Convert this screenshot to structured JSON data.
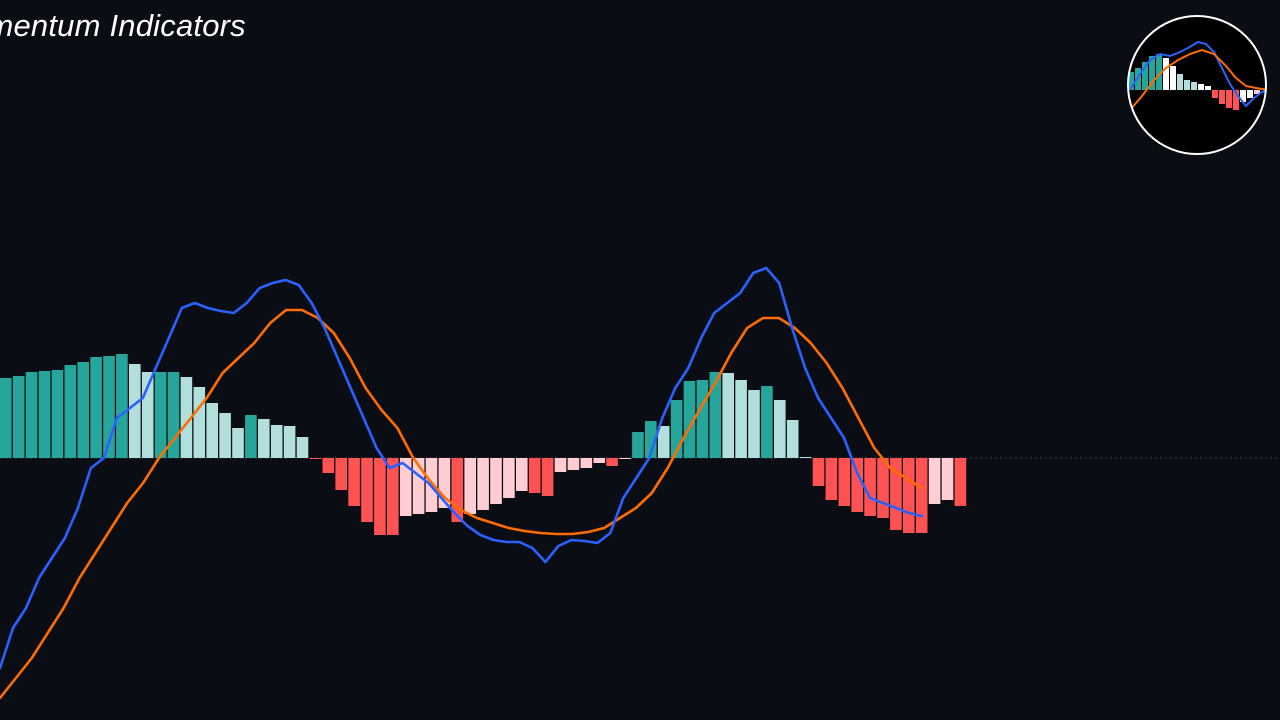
{
  "title": "Momentum Indicators",
  "colors": {
    "background": "#0a0d14",
    "hist_pos_strong": "#26a69a",
    "hist_pos_weak": "#b2dfdb",
    "hist_neg_strong": "#ff5252",
    "hist_neg_weak": "#ffcdd2",
    "macd_line": "#2962ff",
    "signal_line": "#ff6d00",
    "zero_line": "#3a3f4a",
    "logo_ring": "#ffffff"
  },
  "logo": {
    "name": "indicator-badge",
    "depicts": "miniature MACD histogram with two lines"
  },
  "chart_data": {
    "type": "bar",
    "grid": false,
    "legend": "none",
    "ylim": [
      -3.0,
      2.0
    ],
    "histogram": [
      0.8,
      0.82,
      0.86,
      0.87,
      0.88,
      0.93,
      0.96,
      1.01,
      1.02,
      1.04,
      0.94,
      0.86,
      0.86,
      0.86,
      0.81,
      0.71,
      0.55,
      0.45,
      0.3,
      0.43,
      0.39,
      0.33,
      0.32,
      0.21,
      -0.01,
      -0.15,
      -0.32,
      -0.48,
      -0.64,
      -0.77,
      -0.77,
      -0.58,
      -0.56,
      -0.54,
      -0.5,
      -0.64,
      -0.56,
      -0.52,
      -0.46,
      -0.4,
      -0.33,
      -0.35,
      -0.38,
      -0.14,
      -0.12,
      -0.1,
      -0.05,
      -0.08,
      -0.01,
      0.26,
      0.37,
      0.32,
      0.58,
      0.77,
      0.78,
      0.86,
      0.85,
      0.78,
      0.68,
      0.72,
      0.58,
      0.38,
      0.01,
      -0.28,
      -0.42,
      -0.48,
      -0.54,
      -0.58,
      -0.6,
      -0.72,
      -0.75,
      -0.75,
      -0.46,
      -0.42,
      -0.48
    ],
    "series": [
      {
        "values": [
          -2.1,
          -1.7,
          -1.5,
          -1.2,
          -1.0,
          -0.8,
          -0.5,
          -0.1,
          0.0,
          0.4,
          0.5,
          0.6,
          0.9,
          1.2,
          1.5,
          1.55,
          1.5,
          1.47,
          1.45,
          1.55,
          1.7,
          1.75,
          1.78,
          1.73,
          1.55,
          1.3,
          1.0,
          0.7,
          0.4,
          0.1,
          -0.1,
          -0.05,
          -0.15,
          -0.25,
          -0.4,
          -0.55,
          -0.68,
          -0.77,
          -0.82,
          -0.84,
          -0.84,
          -0.9,
          -1.04,
          -0.88,
          -0.82,
          -0.83,
          -0.85,
          -0.75,
          -0.4,
          -0.2,
          0.0,
          0.4,
          0.7,
          0.9,
          1.2,
          1.45,
          1.55,
          1.65,
          1.85,
          1.9,
          1.75,
          1.3,
          0.9,
          0.6,
          0.4,
          0.2,
          -0.15,
          -0.4,
          -0.45,
          -0.5,
          -0.55,
          -0.58
        ]
      },
      {
        "values": [
          -2.4,
          -2.2,
          -2.0,
          -1.75,
          -1.5,
          -1.2,
          -0.95,
          -0.7,
          -0.45,
          -0.25,
          0.0,
          0.2,
          0.4,
          0.6,
          0.85,
          1.0,
          1.15,
          1.35,
          1.48,
          1.48,
          1.4,
          1.25,
          1.0,
          0.7,
          0.48,
          0.3,
          0.0,
          -0.22,
          -0.4,
          -0.52,
          -0.6,
          -0.65,
          -0.7,
          -0.73,
          -0.75,
          -0.76,
          -0.76,
          -0.74,
          -0.7,
          -0.6,
          -0.5,
          -0.35,
          -0.1,
          0.2,
          0.48,
          0.75,
          1.05,
          1.3,
          1.4,
          1.4,
          1.3,
          1.15,
          0.95,
          0.7,
          0.4,
          0.1,
          -0.1,
          -0.2,
          -0.3
        ]
      }
    ]
  }
}
